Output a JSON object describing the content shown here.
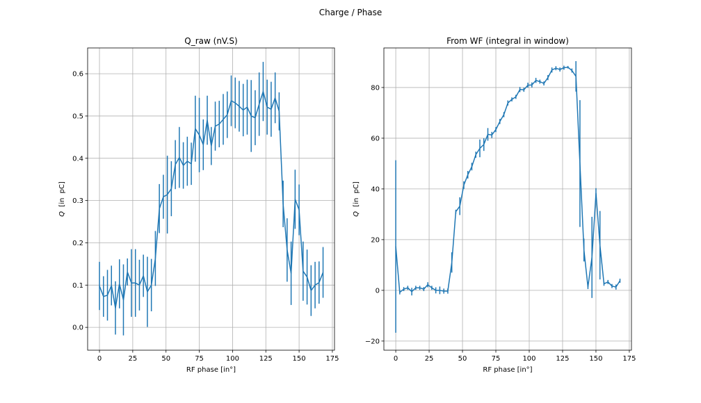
{
  "figure_title": "Charge / Phase",
  "chart_data": [
    {
      "type": "line",
      "title": "Q_raw (nV.S)",
      "xlabel": "RF phase [in°]",
      "ylabel": "Q  [in  pC]",
      "xlim": [
        -8.9,
        176.6
      ],
      "ylim": [
        -0.054,
        0.661
      ],
      "xticks": [
        0,
        25,
        50,
        75,
        100,
        125,
        150,
        175
      ],
      "yticks": [
        0.0,
        0.1,
        0.2,
        0.3,
        0.4,
        0.5,
        0.6
      ],
      "ytick_format": 1,
      "grid": true,
      "color": "#1f77b4",
      "x": [
        0,
        3,
        6,
        9,
        12,
        15,
        18,
        21,
        24,
        27,
        30,
        33,
        36,
        39,
        42,
        45,
        48,
        51,
        54,
        57,
        60,
        63,
        66,
        69,
        72,
        75,
        78,
        81,
        84,
        87,
        90,
        93,
        96,
        99,
        102,
        105,
        108,
        111,
        114,
        117,
        120,
        123,
        126,
        129,
        132,
        135,
        138,
        141,
        144,
        147,
        150,
        153,
        156,
        159,
        162,
        165,
        168
      ],
      "y": [
        0.098,
        0.073,
        0.076,
        0.099,
        0.046,
        0.103,
        0.065,
        0.131,
        0.105,
        0.105,
        0.1,
        0.122,
        0.084,
        0.1,
        0.163,
        0.281,
        0.309,
        0.314,
        0.328,
        0.385,
        0.402,
        0.383,
        0.393,
        0.387,
        0.47,
        0.455,
        0.432,
        0.49,
        0.429,
        0.476,
        0.481,
        0.492,
        0.503,
        0.536,
        0.531,
        0.523,
        0.514,
        0.521,
        0.5,
        0.496,
        0.528,
        0.558,
        0.521,
        0.516,
        0.543,
        0.511,
        0.292,
        0.183,
        0.128,
        0.303,
        0.278,
        0.133,
        0.119,
        0.087,
        0.1,
        0.106,
        0.13
      ],
      "yerr": [
        0.057,
        0.048,
        0.06,
        0.047,
        0.063,
        0.058,
        0.084,
        0.032,
        0.08,
        0.08,
        0.06,
        0.05,
        0.083,
        0.062,
        0.065,
        0.058,
        0.052,
        0.092,
        0.065,
        0.058,
        0.072,
        0.055,
        0.058,
        0.05,
        0.078,
        0.088,
        0.06,
        0.058,
        0.045,
        0.058,
        0.055,
        0.06,
        0.055,
        0.06,
        0.06,
        0.06,
        0.062,
        0.065,
        0.085,
        0.065,
        0.075,
        0.07,
        0.065,
        0.065,
        0.06,
        0.045,
        0.055,
        0.075,
        0.075,
        0.07,
        0.06,
        0.07,
        0.065,
        0.06,
        0.055,
        0.05,
        0.06
      ]
    },
    {
      "type": "line",
      "title": "From WF (integral in window)",
      "xlabel": "RF phase [in°]",
      "ylabel": "Q  [in  pC]",
      "xlim": [
        -8.9,
        176.6
      ],
      "ylim": [
        -23.6,
        95.6
      ],
      "xticks": [
        0,
        25,
        50,
        75,
        100,
        125,
        150,
        175
      ],
      "yticks": [
        -20,
        0,
        20,
        40,
        60,
        80
      ],
      "ytick_format": 0,
      "grid": true,
      "color": "#1f77b4",
      "x": [
        0,
        3,
        6,
        9,
        12,
        15,
        18,
        21,
        24,
        27,
        30,
        33,
        36,
        39,
        42,
        45,
        48,
        51,
        54,
        57,
        60,
        63,
        66,
        69,
        72,
        75,
        78,
        81,
        84,
        87,
        90,
        93,
        96,
        99,
        102,
        105,
        108,
        111,
        114,
        117,
        120,
        123,
        126,
        129,
        132,
        135,
        138,
        141,
        144,
        147,
        150,
        153,
        156,
        159,
        162,
        165,
        168
      ],
      "y": [
        17.3,
        -0.8,
        0.5,
        1,
        -0.5,
        1,
        1,
        0.5,
        2.2,
        1,
        0,
        0,
        -0.3,
        -0.3,
        11,
        31,
        33.2,
        41.5,
        45.6,
        48.8,
        53.5,
        56,
        57.5,
        61.5,
        61.3,
        63.4,
        66.6,
        69.3,
        73.9,
        75.3,
        76.3,
        79.2,
        79.1,
        80.9,
        81,
        82.8,
        82.3,
        81.6,
        83.9,
        86.9,
        87.6,
        87.1,
        87.8,
        88,
        86.7,
        84.4,
        50,
        15.9,
        1.3,
        13,
        38.3,
        17.8,
        2.6,
        3.3,
        1.7,
        1.3,
        3.8
      ],
      "yerr": [
        34,
        0.8,
        0.8,
        0.8,
        1.5,
        0.8,
        0.8,
        0.8,
        1,
        0.8,
        1.2,
        1.5,
        1,
        1,
        4,
        0.8,
        3.5,
        1.5,
        1.5,
        1.5,
        1.2,
        3.5,
        2.5,
        2.5,
        1.2,
        1,
        1,
        1,
        1,
        0.8,
        0.8,
        1,
        0.8,
        1,
        1,
        1,
        0.8,
        0.8,
        1,
        1,
        0.8,
        0.8,
        0.8,
        0.5,
        0.8,
        6,
        25,
        4.5,
        0.8,
        16,
        2,
        13.5,
        0.8,
        0.8,
        0.8,
        1,
        0.8
      ]
    }
  ]
}
